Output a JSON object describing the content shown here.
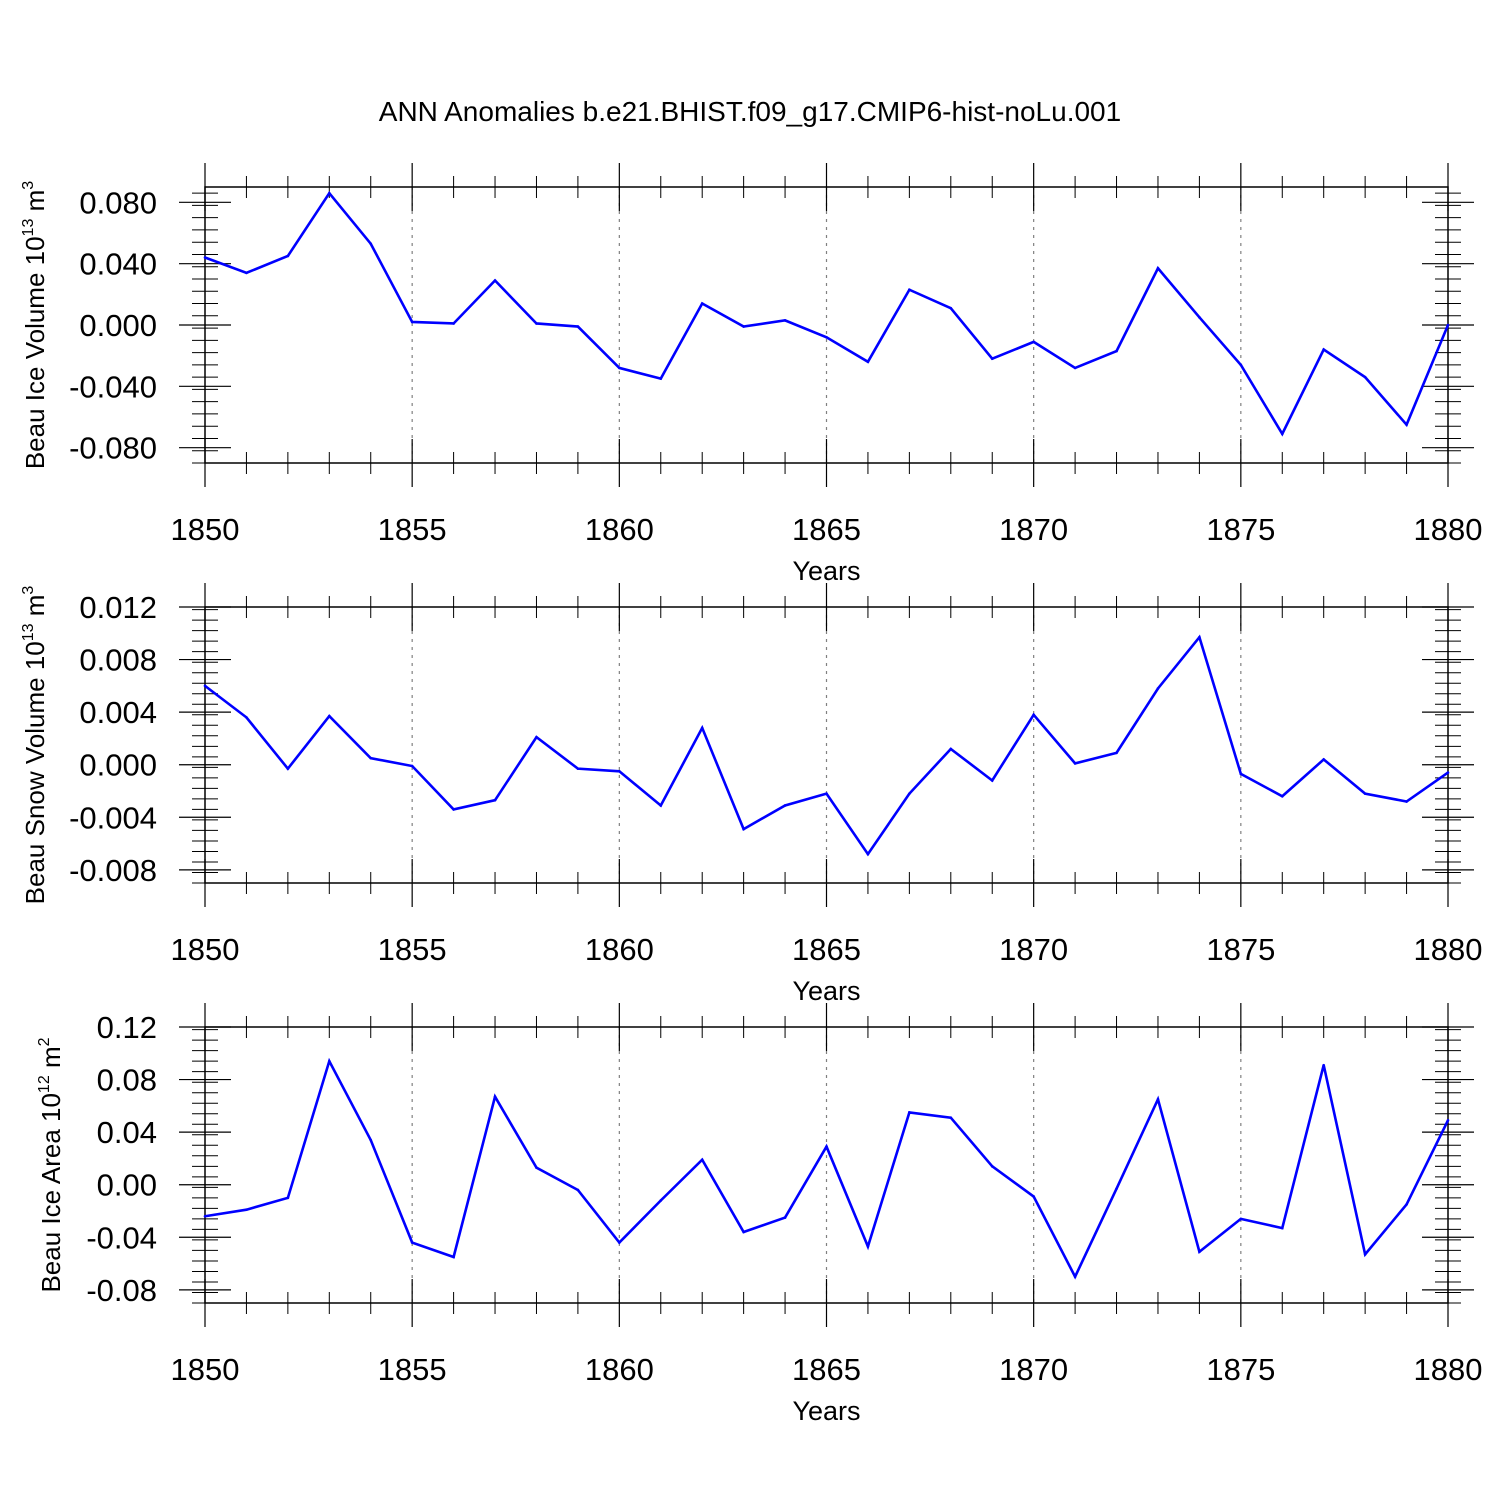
{
  "title": "ANN Anomalies b.e21.BHIST.f09_g17.CMIP6-hist-noLu.001",
  "colors": {
    "line": "#0000ff",
    "axis": "#000000",
    "grid": "#808080"
  },
  "chart_data": [
    {
      "type": "line",
      "name": "beau-ice-volume",
      "ylabel": "Beau Ice Volume",
      "ylabel_base": "10",
      "ylabel_exp": "13",
      "ylabel_unit": "m",
      "ylabel_unit_exp": "3",
      "xlabel": "Years",
      "xlim": [
        1850,
        1880
      ],
      "ylim": [
        -0.09,
        0.09
      ],
      "xticks": [
        1850,
        1855,
        1860,
        1865,
        1870,
        1875,
        1880
      ],
      "xtick_labels": [
        "1850",
        "1855",
        "1860",
        "1865",
        "1870",
        "1875",
        "1880"
      ],
      "yticks": [
        -0.08,
        -0.04,
        0.0,
        0.04,
        0.08
      ],
      "ytick_labels": [
        "-0.080",
        "-0.040",
        "0.000",
        "0.040",
        "0.080"
      ],
      "grid_x": true,
      "x": [
        1850,
        1851,
        1852,
        1853,
        1854,
        1855,
        1856,
        1857,
        1858,
        1859,
        1860,
        1861,
        1862,
        1863,
        1864,
        1865,
        1866,
        1867,
        1868,
        1869,
        1870,
        1871,
        1872,
        1873,
        1874,
        1875,
        1876,
        1877,
        1878,
        1879,
        1880
      ],
      "values": [
        0.044,
        0.034,
        0.045,
        0.086,
        0.053,
        0.002,
        0.001,
        0.029,
        0.001,
        -0.001,
        -0.028,
        -0.035,
        0.014,
        -0.001,
        0.003,
        -0.008,
        -0.024,
        0.023,
        0.011,
        -0.022,
        -0.011,
        -0.028,
        -0.017,
        0.037,
        0.005,
        -0.026,
        -0.071,
        -0.016,
        -0.034,
        -0.065,
        0.0
      ]
    },
    {
      "type": "line",
      "name": "beau-snow-volume",
      "ylabel": "Beau Snow Volume",
      "ylabel_base": "10",
      "ylabel_exp": "13",
      "ylabel_unit": "m",
      "ylabel_unit_exp": "3",
      "xlabel": "Years",
      "xlim": [
        1850,
        1880
      ],
      "ylim": [
        -0.009,
        0.012
      ],
      "xticks": [
        1850,
        1855,
        1860,
        1865,
        1870,
        1875,
        1880
      ],
      "xtick_labels": [
        "1850",
        "1855",
        "1860",
        "1865",
        "1870",
        "1875",
        "1880"
      ],
      "yticks": [
        -0.008,
        -0.004,
        0.0,
        0.004,
        0.008,
        0.012
      ],
      "ytick_labels": [
        "-0.008",
        "-0.004",
        "0.000",
        "0.004",
        "0.008",
        "0.012"
      ],
      "grid_x": true,
      "x": [
        1850,
        1851,
        1852,
        1853,
        1854,
        1855,
        1856,
        1857,
        1858,
        1859,
        1860,
        1861,
        1862,
        1863,
        1864,
        1865,
        1866,
        1867,
        1868,
        1869,
        1870,
        1871,
        1872,
        1873,
        1874,
        1875,
        1876,
        1877,
        1878,
        1879,
        1880
      ],
      "values": [
        0.006,
        0.0036,
        -0.0003,
        0.0037,
        0.0005,
        -0.0001,
        -0.0034,
        -0.0027,
        0.0021,
        -0.0003,
        -0.0005,
        -0.0031,
        0.0028,
        -0.0049,
        -0.0031,
        -0.0022,
        -0.0068,
        -0.0022,
        0.0012,
        -0.0012,
        0.0038,
        0.0001,
        0.0009,
        0.0058,
        0.0097,
        -0.0007,
        -0.0024,
        0.0004,
        -0.0022,
        -0.0028,
        -0.0006
      ]
    },
    {
      "type": "line",
      "name": "beau-ice-area",
      "ylabel": "Beau Ice Area",
      "ylabel_base": "10",
      "ylabel_exp": "12",
      "ylabel_unit": "m",
      "ylabel_unit_exp": "2",
      "xlabel": "Years",
      "xlim": [
        1850,
        1880
      ],
      "ylim": [
        -0.09,
        0.12
      ],
      "xticks": [
        1850,
        1855,
        1860,
        1865,
        1870,
        1875,
        1880
      ],
      "xtick_labels": [
        "1850",
        "1855",
        "1860",
        "1865",
        "1870",
        "1875",
        "1880"
      ],
      "yticks": [
        -0.08,
        -0.04,
        0.0,
        0.04,
        0.08,
        0.12
      ],
      "ytick_labels": [
        "-0.08",
        "-0.04",
        "0.00",
        "0.04",
        "0.08",
        "0.12"
      ],
      "grid_x": true,
      "x": [
        1850,
        1851,
        1852,
        1853,
        1854,
        1855,
        1856,
        1857,
        1858,
        1859,
        1860,
        1861,
        1862,
        1863,
        1864,
        1865,
        1866,
        1867,
        1868,
        1869,
        1870,
        1871,
        1872,
        1873,
        1874,
        1875,
        1876,
        1877,
        1878,
        1879,
        1880
      ],
      "values": [
        -0.024,
        -0.019,
        -0.01,
        0.094,
        0.034,
        -0.044,
        -0.055,
        0.067,
        0.013,
        -0.004,
        -0.044,
        -0.012,
        0.019,
        -0.036,
        -0.025,
        0.029,
        -0.047,
        0.055,
        0.051,
        0.014,
        -0.009,
        -0.07,
        -0.003,
        0.065,
        -0.051,
        -0.026,
        -0.033,
        0.091,
        -0.053,
        -0.015,
        0.049
      ]
    }
  ]
}
